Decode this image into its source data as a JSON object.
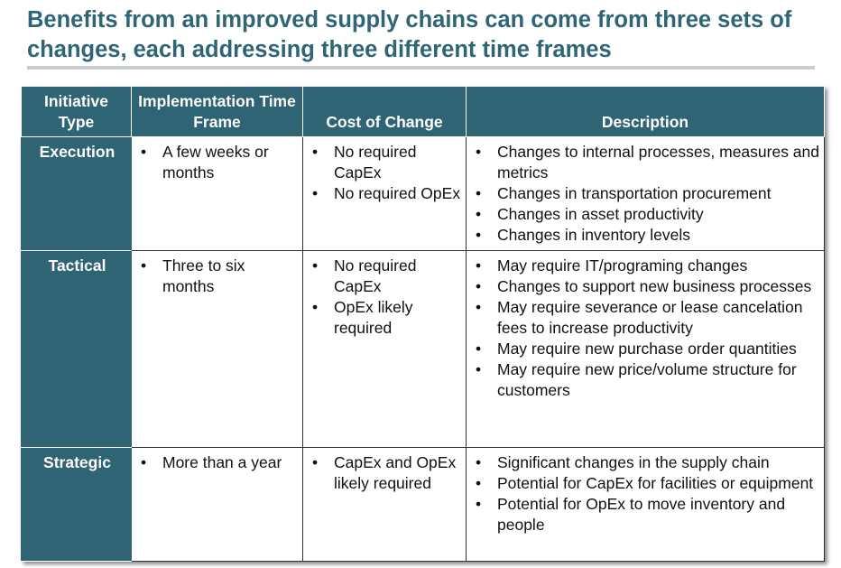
{
  "title": "Benefits from an improved supply chains can come from three sets of changes, each addressing three different time frames",
  "table": {
    "headers": [
      "Initiative Type",
      "Implementation Time Frame",
      "Cost of Change",
      "Description"
    ],
    "rows": [
      [
        "Execution",
        [
          "A few weeks or months"
        ],
        [
          "No required CapEx",
          "No required OpEx"
        ],
        [
          "Changes to internal processes, measures and metrics",
          "Changes in transportation procurement",
          "Changes in asset productivity",
          "Changes in inventory levels"
        ]
      ],
      [
        "Tactical",
        [
          "Three to six months"
        ],
        [
          "No required CapEx",
          "OpEx likely required"
        ],
        [
          "May require IT/programing changes",
          "Changes to support new business processes",
          "May require severance or lease cancelation fees to increase productivity",
          "May require new purchase order quantities",
          "May require new price/volume structure for customers"
        ]
      ],
      [
        "Strategic",
        [
          "More than a year"
        ],
        [
          "CapEx and OpEx likely required"
        ],
        [
          "Significant changes in the supply chain",
          "Potential for CapEx for facilities or equipment",
          "Potential for OpEx to move inventory and people"
        ]
      ]
    ]
  }
}
